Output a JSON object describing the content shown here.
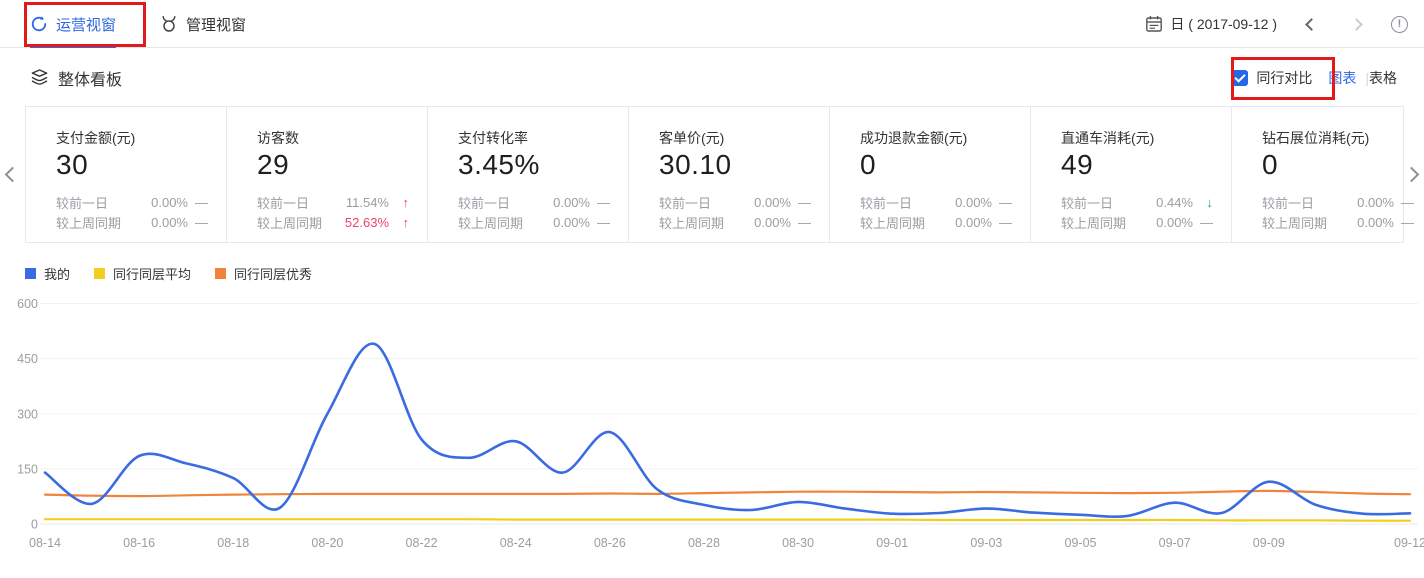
{
  "topbar": {
    "tabs": [
      {
        "label": "运营视窗",
        "active": true
      },
      {
        "label": "管理视窗",
        "active": false
      }
    ],
    "date_label": "日 ( 2017-09-12 )"
  },
  "toolbar": {
    "section_title": "整体看板",
    "peer_compare": {
      "label": "同行对比",
      "checked": true
    },
    "view_switch": {
      "chart": "图表",
      "separator": "|",
      "table": "表格",
      "active": "chart"
    }
  },
  "cards": [
    {
      "key": "pay-amount",
      "title": "支付金额(元)",
      "value": "30",
      "rows": [
        {
          "label": "较前一日",
          "value": "0.00%",
          "trend": "flat",
          "highlight": false
        },
        {
          "label": "较上周同期",
          "value": "0.00%",
          "trend": "flat",
          "highlight": false
        }
      ]
    },
    {
      "key": "visitors",
      "title": "访客数",
      "value": "29",
      "rows": [
        {
          "label": "较前一日",
          "value": "11.54%",
          "trend": "up",
          "highlight": false
        },
        {
          "label": "较上周同期",
          "value": "52.63%",
          "trend": "up",
          "highlight": true
        }
      ]
    },
    {
      "key": "pay-conversion",
      "title": "支付转化率",
      "value": "3.45%",
      "rows": [
        {
          "label": "较前一日",
          "value": "0.00%",
          "trend": "flat",
          "highlight": false
        },
        {
          "label": "较上周同期",
          "value": "0.00%",
          "trend": "flat",
          "highlight": false
        }
      ]
    },
    {
      "key": "avg-order-value",
      "title": "客单价(元)",
      "value": "30.10",
      "rows": [
        {
          "label": "较前一日",
          "value": "0.00%",
          "trend": "flat",
          "highlight": false
        },
        {
          "label": "较上周同期",
          "value": "0.00%",
          "trend": "flat",
          "highlight": false
        }
      ]
    },
    {
      "key": "refund-amount",
      "title": "成功退款金额(元)",
      "value": "0",
      "rows": [
        {
          "label": "较前一日",
          "value": "0.00%",
          "trend": "flat",
          "highlight": false
        },
        {
          "label": "较上周同期",
          "value": "0.00%",
          "trend": "flat",
          "highlight": false
        }
      ]
    },
    {
      "key": "ztc-cost",
      "title": "直通车消耗(元)",
      "value": "49",
      "rows": [
        {
          "label": "较前一日",
          "value": "0.44%",
          "trend": "down",
          "highlight": false
        },
        {
          "label": "较上周同期",
          "value": "0.00%",
          "trend": "flat",
          "highlight": false
        }
      ]
    },
    {
      "key": "zuanzhan-cost",
      "title": "钻石展位消耗(元)",
      "value": "0",
      "rows": [
        {
          "label": "较前一日",
          "value": "0.00%",
          "trend": "flat",
          "highlight": false
        },
        {
          "label": "较上周同期",
          "value": "0.00%",
          "trend": "flat",
          "highlight": false
        }
      ]
    }
  ],
  "chart_data": {
    "type": "line",
    "smooth": true,
    "grid": true,
    "legend_position": "top-left",
    "ylim": [
      0,
      600
    ],
    "yticks": [
      0,
      150,
      300,
      450,
      600
    ],
    "x": [
      "08-14",
      "08-15",
      "08-16",
      "08-17",
      "08-18",
      "08-19",
      "08-20",
      "08-21",
      "08-22",
      "08-23",
      "08-24",
      "08-25",
      "08-26",
      "08-27",
      "08-28",
      "08-29",
      "08-30",
      "08-31",
      "09-01",
      "09-02",
      "09-03",
      "09-04",
      "09-05",
      "09-06",
      "09-07",
      "09-08",
      "09-09",
      "09-10",
      "09-11",
      "09-12"
    ],
    "xticks_shown": [
      "08-14",
      "08-16",
      "08-18",
      "08-20",
      "08-22",
      "08-24",
      "08-26",
      "08-28",
      "08-30",
      "09-01",
      "09-03",
      "09-05",
      "09-07",
      "09-09",
      "09-12"
    ],
    "series": [
      {
        "name": "我的",
        "color": "#3a6be2",
        "values": [
          140,
          55,
          185,
          165,
          125,
          45,
          300,
          490,
          230,
          180,
          225,
          140,
          250,
          95,
          52,
          38,
          60,
          42,
          28,
          30,
          42,
          31,
          25,
          22,
          58,
          30,
          115,
          52,
          28,
          29
        ]
      },
      {
        "name": "同行同层平均",
        "color": "#f2cf1e",
        "values": [
          13,
          13,
          13,
          13,
          13,
          13,
          13,
          13,
          13,
          13,
          12,
          12,
          12,
          12,
          12,
          12,
          12,
          12,
          12,
          11,
          11,
          11,
          11,
          11,
          11,
          10,
          10,
          10,
          9,
          9
        ]
      },
      {
        "name": "同行同层优秀",
        "color": "#f0843a",
        "values": [
          80,
          77,
          76,
          78,
          80,
          81,
          82,
          82,
          82,
          82,
          82,
          82,
          83,
          82,
          84,
          86,
          88,
          88,
          87,
          86,
          87,
          86,
          85,
          84,
          85,
          88,
          90,
          87,
          83,
          81
        ]
      }
    ]
  },
  "colors": {
    "accent_blue": "#2c66e5",
    "up_red": "#f0426b",
    "down_green": "#10b350",
    "annotation_red": "#e21a1a",
    "muted_text": "#9b9da3"
  }
}
